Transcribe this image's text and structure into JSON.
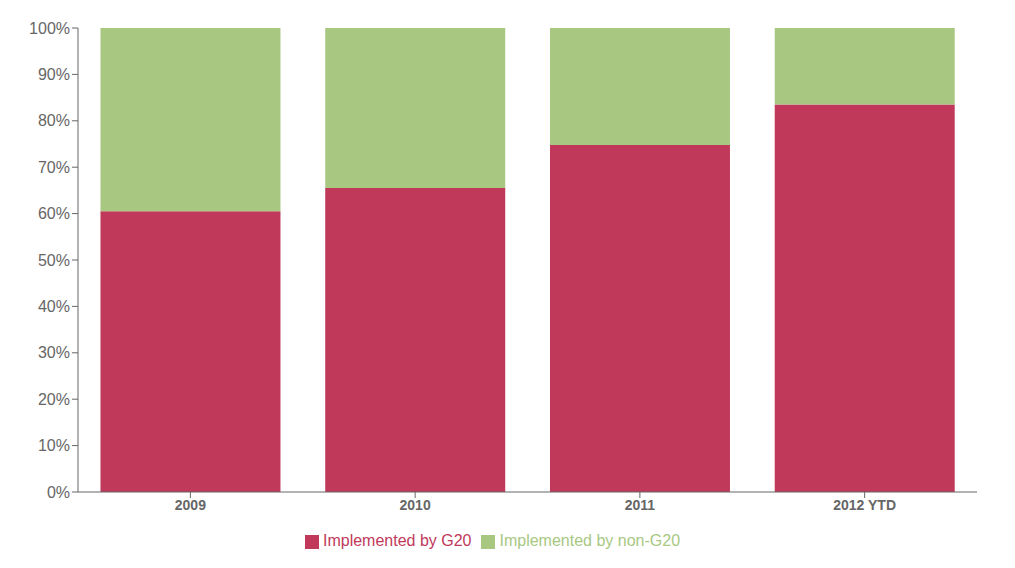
{
  "chart_data": {
    "type": "bar",
    "stacked": true,
    "categories": [
      "2009",
      "2010",
      "2011",
      "2012 YTD"
    ],
    "series": [
      {
        "name": "Implemented by G20",
        "color": "#C0395A",
        "values": [
          0.605,
          0.655,
          0.748,
          0.835
        ]
      },
      {
        "name": "Implemented by non-G20",
        "color": "#A8C882",
        "values": [
          0.395,
          0.345,
          0.252,
          0.165
        ]
      }
    ],
    "ylim": [
      0,
      1.0
    ],
    "yticks": [
      {
        "value": 0.0,
        "label": "0%"
      },
      {
        "value": 0.1,
        "label": "10%"
      },
      {
        "value": 0.2,
        "label": "20%"
      },
      {
        "value": 0.3,
        "label": "30%"
      },
      {
        "value": 0.4,
        "label": "40%"
      },
      {
        "value": 0.5,
        "label": "50%"
      },
      {
        "value": 0.6,
        "label": "60%"
      },
      {
        "value": 0.7,
        "label": "70%"
      },
      {
        "value": 0.8,
        "label": "80%"
      },
      {
        "value": 0.9,
        "label": "90%"
      },
      {
        "value": 1.0,
        "label": "100%"
      }
    ],
    "grid": false,
    "legend": "bottom"
  }
}
